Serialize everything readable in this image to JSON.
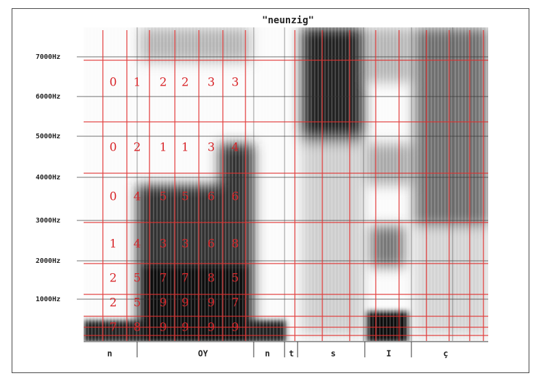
{
  "title": "\"neunzig\"",
  "y_axis": {
    "labels": [
      "7000Hz",
      "6000Hz",
      "5000Hz",
      "4000Hz",
      "3000Hz",
      "2000Hz",
      "1000Hz"
    ]
  },
  "segments": [
    "n",
    "OY",
    "n",
    "t",
    "s",
    "I",
    "ç"
  ],
  "grid": {
    "rows": [
      [
        0,
        1,
        2,
        2,
        3,
        3
      ],
      [
        0,
        2,
        1,
        1,
        3,
        4
      ],
      [
        0,
        4,
        5,
        5,
        6,
        6
      ],
      [
        1,
        4,
        3,
        3,
        6,
        8
      ],
      [
        2,
        5,
        7,
        7,
        8,
        5
      ],
      [
        2,
        5,
        9,
        9,
        9,
        7
      ],
      [
        7,
        8,
        9,
        9,
        9,
        9
      ]
    ]
  }
}
